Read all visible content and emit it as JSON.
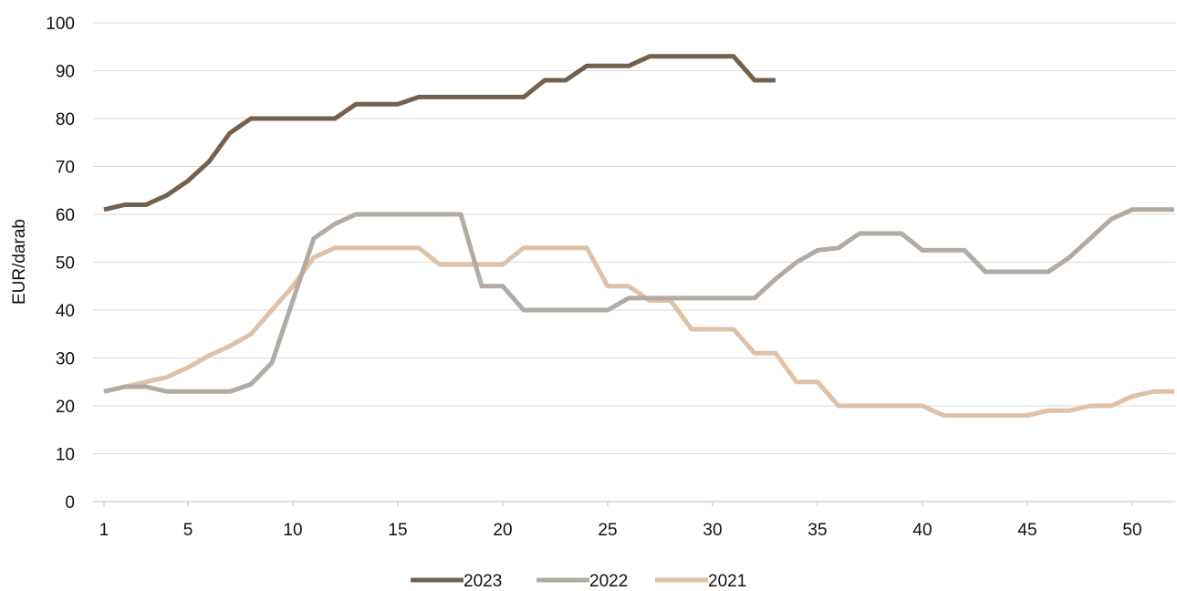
{
  "chart_data": {
    "type": "line",
    "title": "",
    "xlabel": "",
    "ylabel": "EUR/darab",
    "ylim": [
      0,
      100
    ],
    "xlim": [
      1,
      52
    ],
    "y_ticks": [
      "0",
      "10",
      "20",
      "30",
      "40",
      "50",
      "60",
      "70",
      "80",
      "90",
      "100"
    ],
    "x_ticks": [
      "1",
      "5",
      "10",
      "15",
      "20",
      "25",
      "30",
      "35",
      "40",
      "45",
      "50"
    ],
    "grid": "horizontal",
    "legend_position": "bottom",
    "series": [
      {
        "name": "2023",
        "color": "#74604f",
        "x": [
          1,
          2,
          3,
          4,
          5,
          6,
          7,
          8,
          9,
          10,
          11,
          12,
          13,
          14,
          15,
          16,
          17,
          18,
          19,
          20,
          21,
          22,
          23,
          24,
          25,
          26,
          27,
          28,
          29,
          30,
          31,
          32,
          33
        ],
        "values": [
          61,
          62,
          62,
          64,
          67,
          71,
          77,
          80,
          80,
          80,
          80,
          80,
          83,
          83,
          83,
          84.5,
          84.5,
          84.5,
          84.5,
          84.5,
          84.5,
          88,
          88,
          91,
          91,
          91,
          93,
          93,
          93,
          93,
          93,
          88,
          88
        ]
      },
      {
        "name": "2022",
        "color": "#b2aba4",
        "x": [
          1,
          2,
          3,
          4,
          5,
          6,
          7,
          8,
          9,
          10,
          11,
          12,
          13,
          14,
          15,
          16,
          17,
          18,
          19,
          20,
          21,
          22,
          23,
          24,
          25,
          26,
          27,
          28,
          29,
          30,
          31,
          32,
          33,
          34,
          35,
          36,
          37,
          38,
          39,
          40,
          41,
          42,
          43,
          44,
          45,
          46,
          47,
          48,
          49,
          50,
          51,
          52
        ],
        "values": [
          23,
          24,
          24,
          23,
          23,
          23,
          23,
          24.5,
          29,
          42,
          55,
          58,
          60,
          60,
          60,
          60,
          60,
          60,
          45,
          45,
          40,
          40,
          40,
          40,
          40,
          42.5,
          42.5,
          42.5,
          42.5,
          42.5,
          42.5,
          42.5,
          46.5,
          50,
          52.5,
          53,
          56,
          56,
          56,
          52.5,
          52.5,
          52.5,
          48,
          48,
          48,
          48,
          51,
          55,
          59,
          61,
          61,
          61
        ]
      },
      {
        "name": "2021",
        "color": "#dfc1a8",
        "x": [
          1,
          2,
          3,
          4,
          5,
          6,
          7,
          8,
          9,
          10,
          11,
          12,
          13,
          14,
          15,
          16,
          17,
          18,
          19,
          20,
          21,
          22,
          23,
          24,
          25,
          26,
          27,
          28,
          29,
          30,
          31,
          32,
          33,
          34,
          35,
          36,
          37,
          38,
          39,
          40,
          41,
          42,
          43,
          44,
          45,
          46,
          47,
          48,
          49,
          50,
          51,
          52
        ],
        "values": [
          23,
          24,
          25,
          26,
          28,
          30.5,
          32.5,
          35,
          40,
          45,
          51,
          53,
          53,
          53,
          53,
          53,
          49.5,
          49.5,
          49.5,
          49.5,
          53,
          53,
          53,
          53,
          45,
          45,
          42,
          42,
          36,
          36,
          36,
          31,
          31,
          25,
          25,
          20,
          20,
          20,
          20,
          20,
          18,
          18,
          18,
          18,
          18,
          19,
          19,
          20,
          20,
          22,
          23,
          23
        ]
      }
    ]
  }
}
